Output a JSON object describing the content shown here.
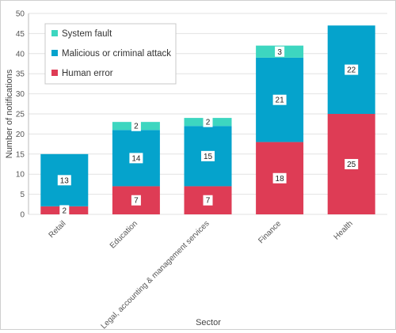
{
  "chart_data": {
    "type": "bar",
    "stacked": true,
    "xlabel": "Sector",
    "ylabel": "Number of notifications",
    "ylim": [
      0,
      50
    ],
    "yticks": [
      0,
      5,
      10,
      15,
      20,
      25,
      30,
      35,
      40,
      45,
      50
    ],
    "grid": true,
    "legend_position": "top-left",
    "categories": [
      "Retail",
      "Education",
      "Legal, accounting & management services",
      "Finance",
      "Health"
    ],
    "series": [
      {
        "name": "Human error",
        "color": "#de3c55",
        "values": [
          2,
          7,
          7,
          18,
          25
        ]
      },
      {
        "name": "Malicious or criminal attack",
        "color": "#05a3cc",
        "values": [
          13,
          14,
          15,
          21,
          22
        ]
      },
      {
        "name": "System fault",
        "color": "#3dd6c0",
        "values": [
          0,
          2,
          2,
          3,
          0
        ]
      }
    ],
    "legend_order": [
      "System fault",
      "Malicious or criminal attack",
      "Human error"
    ]
  }
}
